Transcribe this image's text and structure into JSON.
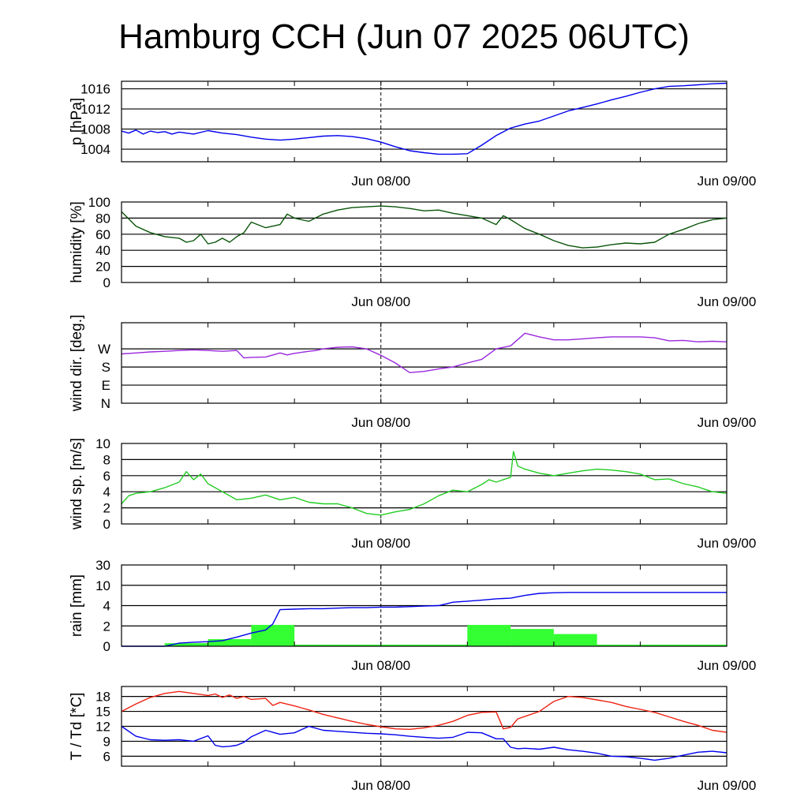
{
  "title": "Hamburg CCH (Jun 07 2025 06UTC)",
  "x_ticks": [
    "Jun 08/00",
    "Jun 09/00"
  ],
  "chart_data": [
    {
      "type": "line",
      "ylabel": "p [hPa]",
      "ylim": [
        1001.5,
        1017.5
      ],
      "yticks": [
        "1004",
        "1008",
        "1012",
        "1016"
      ],
      "x": [
        0,
        0.5,
        1,
        1.5,
        2,
        2.5,
        3,
        3.5,
        4,
        4.5,
        5,
        6,
        7,
        8,
        9,
        10,
        11,
        12,
        13,
        14,
        15,
        16,
        17,
        18,
        19,
        20,
        21,
        22,
        23,
        24,
        25,
        26,
        27,
        28,
        29,
        30,
        31,
        32,
        33,
        34,
        35,
        36,
        37,
        38,
        39,
        40,
        41,
        42
      ],
      "series": [
        {
          "color": "#0000ee",
          "values": [
            1007.6,
            1007.2,
            1007.8,
            1007.0,
            1007.6,
            1007.3,
            1007.5,
            1007.0,
            1007.4,
            1007.2,
            1007.0,
            1007.7,
            1007.2,
            1006.9,
            1006.4,
            1006.0,
            1005.8,
            1006.0,
            1006.3,
            1006.6,
            1006.7,
            1006.5,
            1006.1,
            1005.4,
            1004.5,
            1003.7,
            1003.3,
            1003.0,
            1003.0,
            1003.1,
            1004.8,
            1006.7,
            1008.2,
            1009.0,
            1009.6,
            1010.6,
            1011.6,
            1012.3,
            1013.0,
            1013.8,
            1014.5,
            1015.3,
            1016.0,
            1016.5,
            1016.6,
            1016.8,
            1017.0,
            1017.1
          ]
        }
      ]
    },
    {
      "type": "line",
      "ylabel": "humidity [%]",
      "ylim": [
        0,
        100
      ],
      "yticks": [
        "0",
        "20",
        "40",
        "60",
        "80",
        "100"
      ],
      "x": [
        0,
        1,
        2,
        3,
        4,
        4.5,
        5,
        5.5,
        6,
        6.5,
        7,
        7.5,
        8,
        8.5,
        9,
        10,
        11,
        11.5,
        12,
        13,
        14,
        15,
        16,
        17,
        18,
        19,
        20,
        21,
        22,
        23,
        24,
        25,
        26,
        26.5,
        27,
        28,
        29,
        30,
        31,
        32,
        33,
        34,
        35,
        36,
        37,
        38,
        39,
        40,
        41,
        42
      ],
      "series": [
        {
          "color": "#0a550a",
          "values": [
            88,
            70,
            62,
            57,
            55,
            50,
            52,
            60,
            48,
            50,
            55,
            50,
            57,
            62,
            75,
            68,
            72,
            85,
            80,
            76,
            85,
            90,
            93,
            94,
            95,
            94,
            92,
            89,
            90,
            86,
            83,
            80,
            72,
            83,
            78,
            67,
            60,
            52,
            46,
            43,
            44,
            47,
            49,
            48,
            50,
            60,
            66,
            73,
            78,
            80
          ]
        }
      ]
    },
    {
      "type": "line",
      "ylabel": "wind dir. [deg.]",
      "ylim": [
        0,
        400
      ],
      "yticks": [
        "N",
        "E",
        "S",
        "W"
      ],
      "x": [
        0,
        1,
        2,
        3,
        4,
        5,
        6,
        7,
        8,
        8.5,
        9,
        10,
        11,
        11.5,
        12,
        13,
        13.5,
        14,
        15,
        16,
        17,
        18,
        19,
        20,
        21,
        22,
        23,
        24,
        25,
        26,
        27,
        28,
        29,
        30,
        31,
        32,
        33,
        34,
        35,
        36,
        37,
        38,
        39,
        40,
        41,
        42
      ],
      "series": [
        {
          "color": "#9928dd",
          "values": [
            245,
            250,
            255,
            258,
            262,
            265,
            262,
            258,
            262,
            225,
            228,
            230,
            250,
            240,
            248,
            258,
            262,
            270,
            278,
            280,
            270,
            238,
            200,
            152,
            158,
            170,
            180,
            200,
            218,
            270,
            285,
            348,
            330,
            315,
            315,
            320,
            325,
            330,
            330,
            330,
            325,
            310,
            312,
            305,
            308,
            305
          ]
        }
      ]
    },
    {
      "type": "line",
      "ylabel": "wind sp. [m/s]",
      "ylim": [
        0,
        10
      ],
      "yticks": [
        "0",
        "2",
        "4",
        "6",
        "8",
        "10"
      ],
      "x": [
        0,
        0.5,
        1,
        2,
        3,
        4,
        4.5,
        5,
        5.5,
        6,
        7,
        8,
        9,
        10,
        11,
        12,
        13,
        14,
        15,
        16,
        17,
        18,
        19,
        20,
        21,
        22,
        23,
        24,
        25,
        25.5,
        26,
        27,
        27.2,
        27.5,
        28,
        29,
        30,
        31,
        32,
        33,
        34,
        35,
        36,
        37,
        38,
        39,
        40,
        41,
        42
      ],
      "series": [
        {
          "color": "#22cc22",
          "values": [
            2.5,
            3.5,
            3.8,
            4.0,
            4.5,
            5.2,
            6.5,
            5.5,
            6.2,
            5.0,
            4.0,
            3.0,
            3.2,
            3.6,
            3.0,
            3.3,
            2.7,
            2.5,
            2.5,
            2.0,
            1.3,
            1.1,
            1.5,
            1.8,
            2.5,
            3.5,
            4.2,
            4.0,
            4.9,
            5.5,
            5.2,
            5.8,
            9.0,
            7.2,
            6.8,
            6.3,
            6.0,
            6.3,
            6.6,
            6.8,
            6.7,
            6.5,
            6.2,
            5.5,
            5.6,
            5.0,
            4.6,
            4.0,
            3.8
          ]
        }
      ]
    },
    {
      "type": "bar+line",
      "ylabel": "rain [mm]",
      "yticks": [
        "0",
        "2",
        "4",
        "10",
        "30"
      ],
      "ytick_values": [
        0,
        2,
        4,
        10,
        30
      ],
      "bars": {
        "color": "#33ff33",
        "width_hours": 3,
        "x_start": [
          3,
          6,
          9,
          12,
          15,
          18,
          21,
          24,
          27,
          30,
          33,
          36,
          39
        ],
        "values": [
          0.3,
          0.7,
          2.1,
          0.15,
          0.0,
          0.0,
          0.0,
          2.1,
          1.7,
          1.2,
          0.0,
          0.0,
          0.0
        ]
      },
      "series": [
        {
          "color": "#0000ee",
          "x": [
            0,
            2,
            3,
            4,
            5,
            6,
            7,
            8,
            9,
            10,
            10.5,
            11,
            12,
            13,
            14,
            15,
            16,
            17,
            18,
            19,
            20,
            21,
            22,
            22.5,
            23,
            24,
            25,
            26,
            27,
            28,
            29,
            30,
            31,
            32,
            33,
            34,
            35,
            36,
            37,
            38,
            39,
            40,
            41,
            42
          ],
          "values": [
            0,
            0,
            0,
            0.3,
            0.4,
            0.45,
            0.55,
            0.9,
            1.3,
            1.6,
            2.2,
            3.6,
            3.65,
            3.7,
            3.7,
            3.75,
            3.8,
            3.8,
            3.85,
            3.85,
            3.9,
            3.95,
            4.0,
            4.5,
            5.0,
            5.3,
            5.6,
            6.0,
            6.2,
            7.0,
            7.6,
            7.8,
            7.9,
            7.9,
            7.9,
            7.9,
            7.9,
            7.9,
            7.9,
            7.9,
            7.9,
            7.9,
            7.9,
            7.9
          ]
        }
      ]
    },
    {
      "type": "line",
      "ylabel": "T / Td [*C]",
      "ylim": [
        4,
        20
      ],
      "yticks": [
        "6",
        "9",
        "12",
        "15",
        "18"
      ],
      "x": [
        0,
        1,
        2,
        3,
        4,
        5,
        6,
        6.5,
        7,
        7.5,
        8,
        8.5,
        9,
        10,
        10.5,
        11,
        12,
        13,
        14,
        15,
        16,
        17,
        18,
        19,
        20,
        21,
        22,
        23,
        24,
        25,
        26,
        26.5,
        27,
        27.5,
        28,
        29,
        30,
        31,
        32,
        33,
        34,
        35,
        36,
        37,
        38,
        39,
        40,
        41,
        42
      ],
      "series": [
        {
          "color": "#ee2211",
          "values": [
            15.0,
            16.5,
            17.8,
            18.6,
            19.0,
            18.6,
            18.2,
            18.5,
            17.8,
            18.3,
            17.6,
            18.0,
            17.4,
            17.6,
            16.2,
            16.8,
            16.1,
            15.3,
            14.4,
            13.7,
            13.0,
            12.4,
            11.9,
            11.5,
            11.4,
            11.7,
            12.2,
            13.0,
            14.2,
            14.8,
            14.9,
            11.5,
            11.8,
            13.5,
            14.0,
            15.0,
            17.0,
            18.0,
            17.8,
            17.3,
            16.8,
            16.0,
            15.4,
            14.8,
            13.9,
            13.0,
            12.2,
            11.2,
            10.8
          ]
        },
        {
          "color": "#0000ee",
          "values": [
            12.0,
            10.0,
            9.3,
            9.2,
            9.3,
            9.0,
            10.1,
            8.2,
            7.9,
            8.0,
            8.2,
            8.8,
            9.9,
            11.2,
            10.8,
            10.4,
            10.7,
            12.0,
            11.2,
            11.0,
            10.8,
            10.6,
            10.5,
            10.3,
            10.0,
            9.8,
            9.6,
            9.8,
            10.8,
            10.7,
            9.5,
            9.5,
            7.8,
            7.5,
            7.6,
            7.4,
            7.8,
            7.3,
            7.0,
            6.6,
            6.0,
            5.9,
            5.6,
            5.2,
            5.6,
            6.2,
            6.8,
            7.0,
            6.7
          ]
        }
      ]
    }
  ]
}
